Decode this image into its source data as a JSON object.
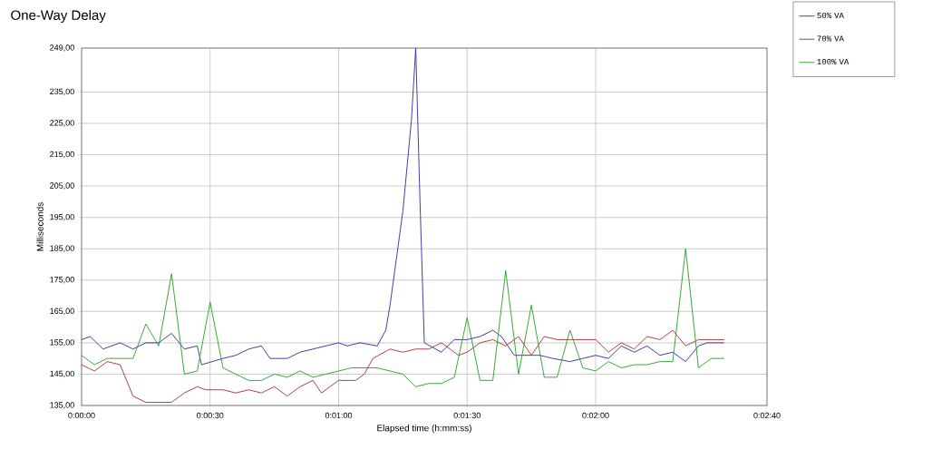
{
  "chart_data": {
    "type": "line",
    "title": "One-Way Delay",
    "xlabel": "Elapsed time (h:mm:ss)",
    "ylabel": "Milliseconds",
    "xlim": [
      0,
      160
    ],
    "ylim": [
      135,
      249
    ],
    "xticks": [
      {
        "value": 0,
        "label": "0:00:00"
      },
      {
        "value": 30,
        "label": "0:00:30"
      },
      {
        "value": 60,
        "label": "0:01:00"
      },
      {
        "value": 90,
        "label": "0:01:30"
      },
      {
        "value": 120,
        "label": "0:02:00"
      },
      {
        "value": 160,
        "label": "0:02:40"
      }
    ],
    "yticks": [
      {
        "value": 135,
        "label": "135,00"
      },
      {
        "value": 145,
        "label": "145,00"
      },
      {
        "value": 155,
        "label": "155,00"
      },
      {
        "value": 165,
        "label": "165,00"
      },
      {
        "value": 175,
        "label": "175,00"
      },
      {
        "value": 185,
        "label": "185,00"
      },
      {
        "value": 195,
        "label": "195,00"
      },
      {
        "value": 205,
        "label": "205,00"
      },
      {
        "value": 215,
        "label": "215,00"
      },
      {
        "value": 225,
        "label": "225,00"
      },
      {
        "value": 235,
        "label": "235,00"
      },
      {
        "value": 249,
        "label": "249,00"
      }
    ],
    "grid": true,
    "legend": "right",
    "marker": "none",
    "line_style": "solid",
    "series": [
      {
        "name": "50% VA",
        "color": "#2a2aa6",
        "x": [
          0,
          2,
          5,
          9,
          12,
          15,
          18,
          21,
          24,
          27,
          28,
          33,
          36,
          39,
          42,
          44,
          48,
          51,
          54,
          60,
          62,
          65,
          69,
          71,
          72,
          75,
          77,
          78,
          79,
          80,
          84,
          87,
          90,
          93,
          96,
          98,
          101,
          104,
          107,
          110,
          114,
          117,
          120,
          123,
          126,
          129,
          132,
          135,
          138,
          141,
          144,
          146,
          150
        ],
        "values": [
          156,
          157,
          153,
          155,
          153,
          155,
          155,
          158,
          153,
          154,
          148,
          150,
          151,
          153,
          154,
          150,
          150,
          152,
          153,
          155,
          154,
          155,
          154,
          159,
          167,
          197,
          226,
          249,
          200,
          155,
          152,
          156,
          156,
          157,
          159,
          157,
          151,
          151,
          151,
          150,
          149,
          150,
          151,
          150,
          154,
          152,
          154,
          151,
          152,
          149,
          154,
          155,
          155
        ]
      },
      {
        "name": "70% VA",
        "color": "#a82c2c",
        "x": [
          0,
          3,
          6,
          9,
          12,
          15,
          21,
          24,
          27,
          29,
          33,
          36,
          39,
          42,
          45,
          48,
          51,
          54,
          56,
          60,
          64,
          66,
          68,
          72,
          75,
          78,
          81,
          84,
          88,
          90,
          93,
          96,
          99,
          102,
          105,
          108,
          111,
          120,
          123,
          126,
          129,
          132,
          135,
          138,
          141,
          144,
          150
        ],
        "values": [
          148,
          146,
          149,
          148,
          138,
          136,
          136,
          139,
          141,
          140,
          140,
          139,
          140,
          139,
          141,
          138,
          141,
          143,
          139,
          143,
          143,
          145,
          150,
          153,
          152,
          153,
          153,
          155,
          151,
          152,
          155,
          156,
          154,
          157,
          151,
          157,
          156,
          156,
          152,
          155,
          153,
          157,
          156,
          159,
          154,
          156,
          156
        ]
      },
      {
        "name": "100% VA",
        "color": "#22a022",
        "x": [
          0,
          3,
          6,
          12,
          15,
          18,
          21,
          24,
          27,
          30,
          33,
          36,
          39,
          42,
          45,
          48,
          51,
          54,
          60,
          63,
          69,
          75,
          78,
          81,
          84,
          87,
          90,
          93,
          96,
          99,
          102,
          105,
          108,
          111,
          114,
          117,
          120,
          123,
          126,
          129,
          132,
          135,
          138,
          141,
          144,
          147,
          150
        ],
        "values": [
          151,
          148,
          150,
          150,
          161,
          154,
          177,
          145,
          146,
          168,
          147,
          145,
          143,
          143,
          145,
          144,
          146,
          144,
          146,
          147,
          147,
          145,
          141,
          142,
          142,
          144,
          163,
          143,
          143,
          178,
          145,
          167,
          144,
          144,
          159,
          147,
          146,
          149,
          147,
          148,
          148,
          149,
          149,
          185,
          147,
          150,
          150
        ]
      }
    ]
  }
}
